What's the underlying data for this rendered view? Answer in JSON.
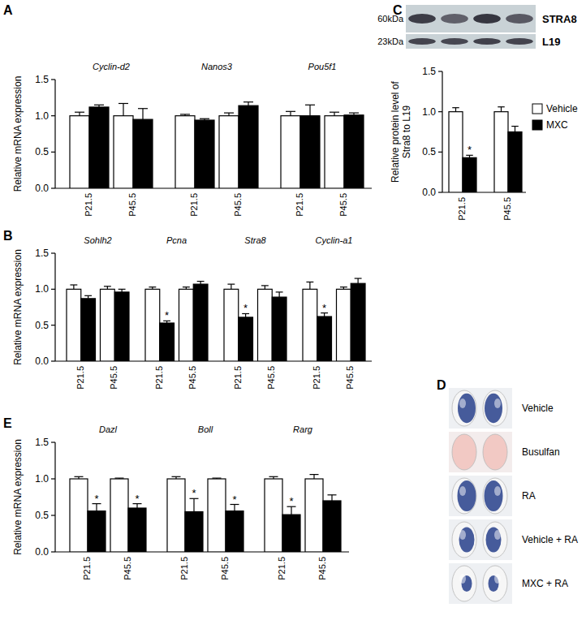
{
  "chart_data": [
    {
      "panel": "A",
      "type": "bar",
      "y_label": "Relative  mRNA expression",
      "group_labels": [
        "Cyclin-d2",
        "Nanos3",
        "Pou5f1"
      ],
      "categories": [
        "P21.5",
        "P45.5",
        "P21.5",
        "P45.5",
        "P21.5",
        "P45.5"
      ],
      "ylim": [
        0,
        1.5
      ],
      "yticks": [
        {
          "value": 0,
          "label": "0.0"
        },
        0.5,
        {
          "value": 1,
          "label": "1.0"
        },
        1.5
      ],
      "series": [
        {
          "name": "Vehicle",
          "color": "#ffffff",
          "values": [
            1.0,
            1.0,
            1.0,
            1.0,
            1.0,
            1.0
          ],
          "errors": [
            0.05,
            0.17,
            0.02,
            0.04,
            0.06,
            0.05
          ]
        },
        {
          "name": "MXC",
          "color": "#000000",
          "values": [
            1.12,
            0.95,
            0.94,
            1.14,
            1.0,
            1.01
          ],
          "errors": [
            0.03,
            0.15,
            0.02,
            0.05,
            0.15,
            0.03
          ]
        }
      ]
    },
    {
      "panel": "B",
      "type": "bar",
      "y_label": "Relative  mRNA expression",
      "group_labels": [
        "Sohlh2",
        "Pcna",
        "Stra8",
        "Cyclin-a1"
      ],
      "categories": [
        "P21.5",
        "P45.5",
        "P21.5",
        "P45.5",
        "P21.5",
        "P45.5",
        "P21.5",
        "P45.5"
      ],
      "ylim": [
        0,
        1.5
      ],
      "yticks": [
        {
          "value": 0,
          "label": "0.0"
        },
        0.5,
        {
          "value": 1,
          "label": "1.0"
        },
        1.5
      ],
      "series": [
        {
          "name": "Vehicle",
          "color": "#ffffff",
          "values": [
            1.0,
            1.0,
            1.0,
            1.0,
            1.0,
            1.0,
            1.0,
            1.0
          ],
          "errors": [
            0.06,
            0.04,
            0.03,
            0.03,
            0.07,
            0.05,
            0.1,
            0.03
          ]
        },
        {
          "name": "MXC",
          "color": "#000000",
          "values": [
            0.87,
            0.96,
            0.53,
            1.07,
            0.61,
            0.89,
            0.62,
            1.08
          ],
          "errors": [
            0.04,
            0.04,
            0.03,
            0.04,
            0.05,
            0.07,
            0.05,
            0.07
          ],
          "significance": [
            null,
            null,
            "*",
            null,
            "*",
            null,
            "*",
            null
          ]
        }
      ]
    },
    {
      "panel": "C",
      "type": "bar",
      "y_label": [
        "Relative protein level of",
        "Stra8 to L19"
      ],
      "blot": {
        "bands": [
          {
            "protein": "STRA8",
            "size": "60kDa"
          },
          {
            "protein": "L19",
            "size": "23kDa"
          }
        ]
      },
      "categories": [
        "P21.5",
        "P45.5"
      ],
      "ylim": [
        0,
        1.5
      ],
      "yticks": [
        {
          "value": 0,
          "label": "0.0"
        },
        0.5,
        {
          "value": 1,
          "label": "1.0"
        },
        1.5
      ],
      "legend": "right",
      "series": [
        {
          "name": "Vehicle",
          "color": "#ffffff",
          "values": [
            1.0,
            1.0
          ],
          "errors": [
            0.05,
            0.06
          ]
        },
        {
          "name": "MXC",
          "color": "#000000",
          "values": [
            0.43,
            0.75
          ],
          "errors": [
            0.03,
            0.07
          ],
          "significance": [
            "*",
            null
          ]
        }
      ]
    },
    {
      "panel": "E",
      "type": "bar",
      "y_label": "Relative  mRNA expression",
      "group_labels": [
        "Dazl",
        "Boll",
        "Rarg"
      ],
      "categories": [
        "P21.5",
        "P45.5",
        "P21.5",
        "P45.5",
        "P21.5",
        "P45.5"
      ],
      "ylim": [
        0,
        1.5
      ],
      "yticks": [
        {
          "value": 0,
          "label": "0.0"
        },
        0.5,
        {
          "value": 1,
          "label": "1.0"
        },
        1.5
      ],
      "series": [
        {
          "name": "Vehicle",
          "color": "#ffffff",
          "values": [
            1.0,
            1.0,
            1.0,
            1.0,
            1.0,
            1.0
          ],
          "errors": [
            0.03,
            0.01,
            0.03,
            0.01,
            0.03,
            0.06
          ]
        },
        {
          "name": "MXC",
          "color": "#000000",
          "values": [
            0.56,
            0.6,
            0.55,
            0.56,
            0.51,
            0.7
          ],
          "errors": [
            0.1,
            0.06,
            0.18,
            0.09,
            0.11,
            0.08
          ],
          "significance": [
            "*",
            "*",
            "*",
            "*",
            "*",
            null
          ]
        }
      ]
    }
  ],
  "panel_d": {
    "panel": "D",
    "labels": [
      "Vehicle",
      "Busulfan",
      "RA",
      "Vehicle + RA",
      "MXC + RA"
    ]
  }
}
